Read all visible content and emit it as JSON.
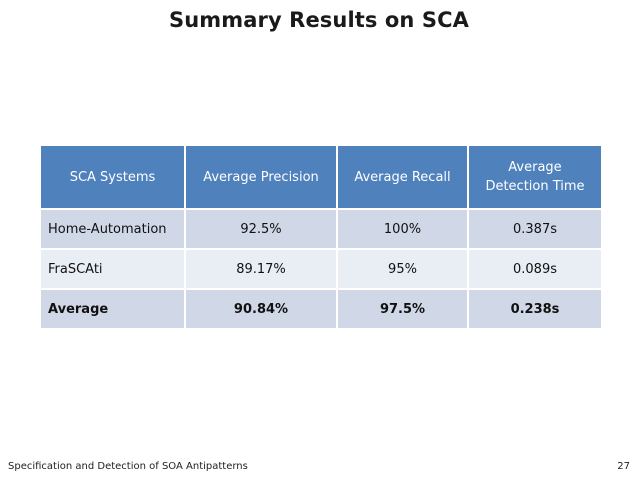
{
  "slide": {
    "title": "Summary Results on SCA"
  },
  "table": {
    "headers": [
      "SCA Systems",
      "Average Precision",
      "Average Recall",
      "Average\nDetection Time"
    ],
    "rows": [
      [
        "Home-Automation",
        "92.5%",
        "100%",
        "0.387s"
      ],
      [
        "FraSCAti",
        "89.17%",
        "95%",
        "0.089s"
      ],
      [
        "Average",
        "90.84%",
        "97.5%",
        "0.238s"
      ]
    ]
  },
  "footer": {
    "title": "Specification and Detection of SOA Antipatterns",
    "page_number": "27"
  },
  "colors": {
    "header_bg": "#4f81bd",
    "row_odd_bg": "#d0d8e8",
    "row_even_bg": "#e9edf4"
  }
}
